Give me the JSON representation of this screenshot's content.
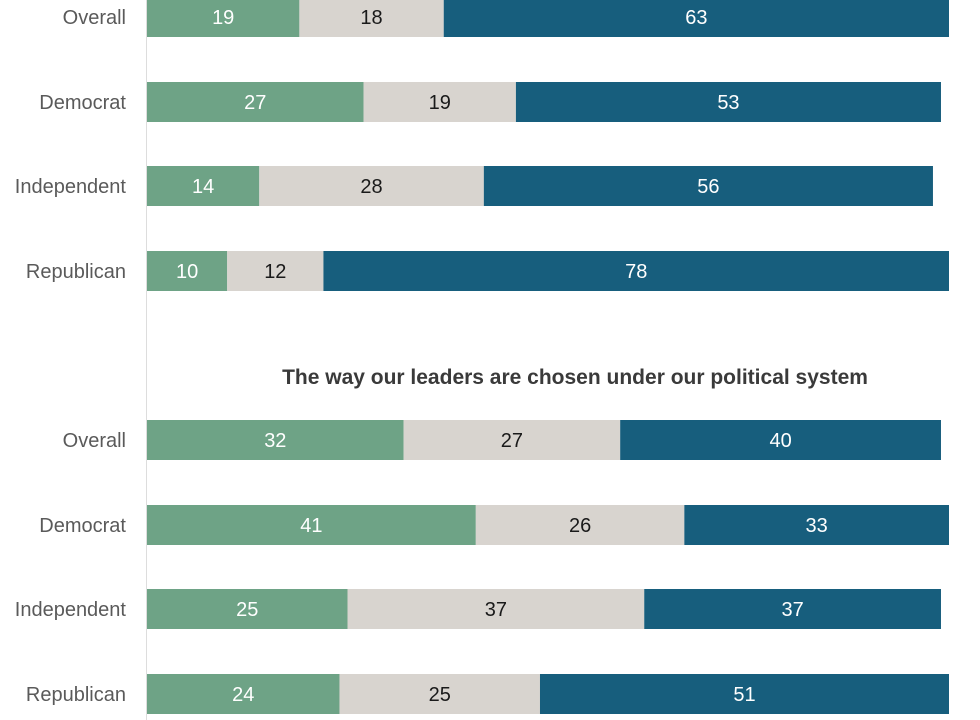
{
  "chart_data": [
    {
      "type": "bar",
      "orientation": "horizontal",
      "stacked": true,
      "title": "",
      "categories": [
        "Overall",
        "Democrat",
        "Independent",
        "Republican"
      ],
      "series": [
        {
          "values": [
            19,
            27,
            14,
            10
          ]
        },
        {
          "values": [
            18,
            19,
            28,
            12
          ]
        },
        {
          "values": [
            63,
            53,
            56,
            78
          ]
        }
      ],
      "colors": [
        "#6ea386",
        "#d8d4cf",
        "#175e7d"
      ],
      "label_colors": [
        "#ffffff",
        "#1a1a1a",
        "#ffffff"
      ],
      "xlim": [
        0,
        100
      ],
      "grid": false,
      "legend": "none"
    },
    {
      "type": "bar",
      "orientation": "horizontal",
      "stacked": true,
      "title": "The way our leaders are chosen under our political system",
      "categories": [
        "Overall",
        "Democrat",
        "Independent",
        "Republican"
      ],
      "series": [
        {
          "values": [
            32,
            41,
            25,
            24
          ]
        },
        {
          "values": [
            27,
            26,
            37,
            25
          ]
        },
        {
          "values": [
            40,
            33,
            37,
            51
          ]
        }
      ],
      "colors": [
        "#6ea386",
        "#d8d4cf",
        "#175e7d"
      ],
      "label_colors": [
        "#ffffff",
        "#1a1a1a",
        "#ffffff"
      ],
      "xlim": [
        0,
        100
      ],
      "grid": false,
      "legend": "none"
    }
  ]
}
